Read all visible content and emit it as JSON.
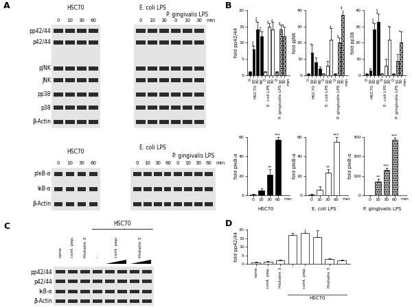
{
  "panels": [
    "A",
    "B",
    "C",
    "D"
  ],
  "blots": [
    {
      "groups": [
        {
          "label": "HSC70",
          "lanes": [
            "0",
            "10",
            "30",
            "60"
          ]
        },
        {
          "label": "E. coli LPS",
          "lanes": [
            "0",
            "10",
            "30"
          ]
        },
        {
          "label": "P. gingivalis LPS",
          "lanes": [
            "0",
            "10",
            "30"
          ]
        }
      ],
      "unit": "min",
      "rows": [
        "pp42/44",
        "p42/44",
        "pJNK",
        "JNK",
        "pp38",
        "p38",
        "β-Actin"
      ]
    },
    {
      "groups": [
        {
          "label": "HSC70",
          "lanes": [
            "0",
            "10",
            "30",
            "60"
          ]
        },
        {
          "label": "E. coli LPS",
          "lanes": [
            "0",
            "10",
            "30",
            "60"
          ]
        },
        {
          "label": "P. gingivalis LPS",
          "lanes": [
            "0",
            "10",
            "30",
            "60"
          ]
        }
      ],
      "unit": "min",
      "rows": [
        "pIκB-α",
        "IκB-α",
        "β-Actin"
      ]
    },
    {
      "group": {
        "label": "HSC70",
        "from": 3,
        "to": 7
      },
      "columns": [
        {
          "label": "none",
          "lanes": 1
        },
        {
          "label": "cont. pep.",
          "lanes": 1
        },
        {
          "label": "Histatin 3",
          "lanes": 1
        },
        {
          "label": "-",
          "lanes": 1
        },
        {
          "label": "cont. pep.",
          "lanes": 2
        },
        {
          "label": "Histatin 3",
          "lanes": 2
        }
      ],
      "rows": [
        "pp42/44",
        "p42/44",
        "IκB-α",
        "β-Actin"
      ]
    }
  ],
  "chart_data": [
    {
      "type": "bar",
      "ylabel": "fold pp42/44",
      "xlabel": "min",
      "categories": [
        "0",
        "10",
        "30",
        "60",
        "0",
        "10",
        "30",
        "0",
        "10",
        "30"
      ],
      "groups": [
        {
          "label": "HSC70",
          "from": 0,
          "to": 3
        },
        {
          "label": "E. coli LPS",
          "from": 4,
          "to": 6
        },
        {
          "label": "P. gingivalis LPS",
          "from": 7,
          "to": 9
        }
      ],
      "values": [
        1,
        8,
        14,
        12,
        1,
        15,
        14,
        1,
        14,
        12
      ],
      "errors": [
        0.3,
        1,
        2.5,
        1.5,
        0.3,
        1,
        2.5,
        0.3,
        1.5,
        3
      ],
      "annotations": [
        null,
        "***",
        "***",
        "***",
        null,
        "**",
        "**",
        null,
        "**",
        "**"
      ],
      "colors": [
        "#000000",
        "#000000",
        "#000000",
        "#000000",
        "#ffffff",
        "#ffffff",
        "#ffffff",
        "#bdbdbd",
        "#bdbdbd",
        "#bdbdbd"
      ],
      "ylim": [
        0,
        20
      ],
      "yticks": [
        0,
        5,
        10,
        15,
        20
      ]
    },
    {
      "type": "bar",
      "ylabel": "fold pJNK",
      "xlabel": "min",
      "categories": [
        "0",
        "10",
        "30",
        "60",
        "0",
        "10",
        "30",
        "0",
        "10",
        "30"
      ],
      "groups": [
        {
          "label": "HSC70",
          "from": 0,
          "to": 3
        },
        {
          "label": "E. coli LPS",
          "from": 4,
          "to": 6
        },
        {
          "label": "P. gingivalis LPS",
          "from": 7,
          "to": 9
        }
      ],
      "values": [
        1,
        14,
        8,
        4,
        1,
        6,
        22,
        1,
        20,
        37
      ],
      "errors": [
        0.3,
        5,
        3,
        1.5,
        0.3,
        3,
        7,
        0.3,
        3,
        4
      ],
      "annotations": [
        null,
        "*",
        null,
        null,
        null,
        null,
        "**",
        null,
        "**",
        "**"
      ],
      "colors": [
        "#000000",
        "#000000",
        "#000000",
        "#000000",
        "#ffffff",
        "#ffffff",
        "#ffffff",
        "#bdbdbd",
        "#bdbdbd",
        "#bdbdbd"
      ],
      "ylim": [
        0,
        40
      ],
      "yticks": [
        0,
        10,
        20,
        30,
        40
      ]
    },
    {
      "type": "bar",
      "ylabel": "fold pp38",
      "xlabel": "min",
      "categories": [
        "0",
        "10",
        "30",
        "60",
        "0",
        "10",
        "30",
        "0",
        "10",
        "30"
      ],
      "groups": [
        {
          "label": "HSC70",
          "from": 0,
          "to": 3
        },
        {
          "label": "E. coli LPS",
          "from": 4,
          "to": 6
        },
        {
          "label": "P. gingivalis LPS",
          "from": 7,
          "to": 9
        }
      ],
      "values": [
        1,
        3,
        28,
        33,
        1,
        6,
        22,
        1,
        9,
        20
      ],
      "errors": [
        0.3,
        1,
        4,
        5,
        0.3,
        4,
        8,
        0.3,
        4,
        7
      ],
      "annotations": [
        null,
        null,
        "***",
        "***",
        null,
        null,
        "*",
        null,
        null,
        "*"
      ],
      "colors": [
        "#000000",
        "#000000",
        "#000000",
        "#000000",
        "#ffffff",
        "#ffffff",
        "#ffffff",
        "#bdbdbd",
        "#bdbdbd",
        "#bdbdbd"
      ],
      "ylim": [
        0,
        40
      ],
      "yticks": [
        0,
        10,
        20,
        30,
        40
      ]
    },
    {
      "type": "bar",
      "ylabel": "fold pIκB-α",
      "xlabel": "min",
      "categories": [
        "0",
        "10",
        "30",
        "60"
      ],
      "groups": [
        {
          "label": "HSC70",
          "from": 0,
          "to": 3
        }
      ],
      "values": [
        1,
        5,
        21,
        57
      ],
      "errors": [
        0.3,
        2,
        6,
        3
      ],
      "annotations": [
        null,
        null,
        "**",
        "***"
      ],
      "colors": [
        "#000000",
        "#000000",
        "#000000",
        "#000000"
      ],
      "ylim": [
        0,
        60
      ],
      "yticks": [
        0,
        20,
        40,
        60
      ]
    },
    {
      "type": "bar",
      "ylabel": "fold pIκB-α",
      "xlabel": "min",
      "categories": [
        "0",
        "10",
        "30",
        "60"
      ],
      "groups": [
        {
          "label": "E. coli LPS",
          "from": 0,
          "to": 3
        }
      ],
      "values": [
        1,
        6,
        23,
        55
      ],
      "errors": [
        0.3,
        3,
        4,
        5
      ],
      "annotations": [
        null,
        null,
        "**",
        "***"
      ],
      "colors": [
        "#ffffff",
        "#ffffff",
        "#ffffff",
        "#ffffff"
      ],
      "ylim": [
        0,
        60
      ],
      "yticks": [
        0,
        20,
        40,
        60
      ]
    },
    {
      "type": "bar",
      "ylabel": "fold pIκB-α",
      "xlabel": "min",
      "categories": [
        "0",
        "10",
        "30",
        "60"
      ],
      "groups": [
        {
          "label": "P. gingivalis LPS",
          "from": 0,
          "to": 3
        }
      ],
      "values": [
        1,
        70,
        130,
        285
      ],
      "errors": [
        0.5,
        15,
        12,
        12
      ],
      "annotations": [
        null,
        "**",
        "***",
        "***"
      ],
      "colors": [
        "#bdbdbd",
        "#bdbdbd",
        "#bdbdbd",
        "#bdbdbd"
      ],
      "ylim": [
        0,
        300
      ],
      "yticks": [
        0,
        100,
        200,
        300
      ]
    },
    {
      "type": "bar",
      "ylabel": "fold pp42/44",
      "categories": [
        "none",
        "cont. pep.",
        "Histatin 3",
        "-",
        "cont. pep.",
        null,
        "Histatin 3",
        null
      ],
      "groups": [
        {
          "label": "HSC70",
          "from": 3,
          "to": 7
        }
      ],
      "values": [
        1,
        1.2,
        2,
        17,
        18,
        15.5,
        2.8,
        2
      ],
      "errors": [
        0.1,
        0.3,
        0.3,
        1,
        3,
        4,
        0.3,
        0.3
      ],
      "color": "#ffffff",
      "ylim": [
        0,
        20
      ],
      "yticks": [
        0,
        5,
        10,
        15,
        20
      ]
    }
  ]
}
